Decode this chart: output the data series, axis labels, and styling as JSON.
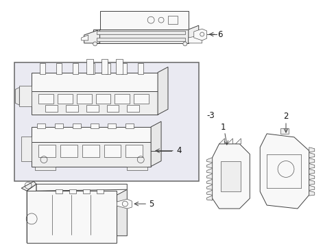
{
  "bg_color": "#ffffff",
  "line_color": "#404040",
  "fill_light": "#f8f8f8",
  "fill_mid": "#eeeeee",
  "box_fill": "#eaeaf2",
  "box_border": "#666666",
  "label_color": "#111111",
  "font_size": 8.5,
  "lw_main": 0.7,
  "lw_thin": 0.45
}
